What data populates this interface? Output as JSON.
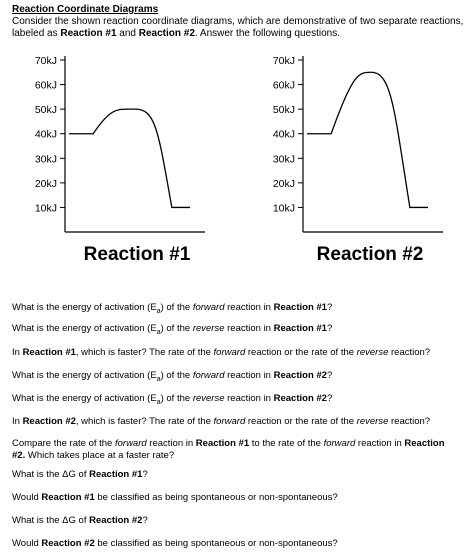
{
  "header": {
    "title": "Reaction Coordinate Diagrams",
    "intro_1": "Consider the shown reaction coordinate diagrams, which are demonstrative of two separate reactions,",
    "intro_2a": "labeled as ",
    "intro_2b": "Reaction #1",
    "intro_2c": " and ",
    "intro_2d": "Reaction #2",
    "intro_2e": ". Answer the following questions."
  },
  "chart_data": [
    {
      "type": "line",
      "title": "Reaction #1",
      "yticks": [
        "70kJ",
        "60kJ",
        "50kJ",
        "40kJ",
        "30kJ",
        "20kJ",
        "10kJ"
      ],
      "ytick_values": [
        70,
        60,
        50,
        40,
        30,
        20,
        10
      ],
      "ylim": [
        0,
        70
      ],
      "x": [
        0,
        0.2,
        0.35,
        0.55,
        0.72,
        0.85,
        1.0
      ],
      "y": [
        40,
        40,
        48,
        50,
        40,
        10,
        10
      ],
      "grid": false
    },
    {
      "type": "line",
      "title": "Reaction #2",
      "yticks": [
        "70kJ",
        "60kJ",
        "50kJ",
        "40kJ",
        "30kJ",
        "20kJ",
        "10kJ"
      ],
      "ytick_values": [
        70,
        60,
        50,
        40,
        30,
        20,
        10
      ],
      "ylim": [
        0,
        70
      ],
      "x": [
        0,
        0.2,
        0.38,
        0.53,
        0.7,
        0.85,
        1.0
      ],
      "y": [
        40,
        40,
        62,
        65,
        50,
        10,
        10
      ],
      "grid": false
    }
  ],
  "questions": [
    [
      {
        "t": "What is the energy of activation (E"
      },
      {
        "t": "a",
        "sub": true
      },
      {
        "t": ") of the "
      },
      {
        "t": "forward",
        "i": true
      },
      {
        "t": " reaction in "
      },
      {
        "t": "Reaction #1",
        "b": true
      },
      {
        "t": "?"
      }
    ],
    [
      {
        "t": "What is the energy of activation (E"
      },
      {
        "t": "a",
        "sub": true
      },
      {
        "t": ") of the "
      },
      {
        "t": "reverse",
        "i": true
      },
      {
        "t": " reaction in "
      },
      {
        "t": "Reaction #1",
        "b": true
      },
      {
        "t": "?"
      }
    ],
    [
      {
        "t": "In "
      },
      {
        "t": "Reaction #1",
        "b": true
      },
      {
        "t": ", which is faster? The rate of the "
      },
      {
        "t": "forward",
        "i": true
      },
      {
        "t": " reaction or the rate of the "
      },
      {
        "t": "reverse",
        "i": true
      },
      {
        "t": " reaction?"
      }
    ],
    [
      {
        "t": "What is the energy of activation (E"
      },
      {
        "t": "a",
        "sub": true
      },
      {
        "t": ") of the "
      },
      {
        "t": "forward",
        "i": true
      },
      {
        "t": " reaction in "
      },
      {
        "t": "Reaction #2",
        "b": true
      },
      {
        "t": "?"
      }
    ],
    [
      {
        "t": "What is the energy of activation (E"
      },
      {
        "t": "a",
        "sub": true
      },
      {
        "t": ") of the "
      },
      {
        "t": "reverse",
        "i": true
      },
      {
        "t": " reaction in "
      },
      {
        "t": "Reaction #2",
        "b": true
      },
      {
        "t": "?"
      }
    ],
    [
      {
        "t": "In "
      },
      {
        "t": "Reaction #2",
        "b": true
      },
      {
        "t": ", which is faster? The rate of the "
      },
      {
        "t": "forward",
        "i": true
      },
      {
        "t": " reaction or the rate of the "
      },
      {
        "t": "reverse",
        "i": true
      },
      {
        "t": " reaction?"
      }
    ],
    [
      {
        "t": "Compare the rate of the "
      },
      {
        "t": "forward",
        "i": true
      },
      {
        "t": " reaction in "
      },
      {
        "t": "Reaction #1",
        "b": true
      },
      {
        "t": " to the rate of the "
      },
      {
        "t": "forward",
        "i": true
      },
      {
        "t": " reaction in "
      },
      {
        "t": "Reaction",
        "b": true
      },
      {
        "br": true
      },
      {
        "t": "#2.",
        "b": true
      },
      {
        "t": " Which takes place at a faster rate?"
      }
    ],
    [
      {
        "t": "What is the ΔG of "
      },
      {
        "t": "Reaction #1",
        "b": true
      },
      {
        "t": "?"
      }
    ],
    [
      {
        "t": "Would "
      },
      {
        "t": "Reaction #1",
        "b": true
      },
      {
        "t": " be classified as being spontaneous or non-spontaneous?"
      }
    ],
    [
      {
        "t": "What is the ΔG of "
      },
      {
        "t": "Reaction #2",
        "b": true
      },
      {
        "t": "?"
      }
    ],
    [
      {
        "t": "Would "
      },
      {
        "t": "Reaction #2",
        "b": true
      },
      {
        "t": " be classified as being spontaneous or non-spontaneous?"
      }
    ]
  ]
}
